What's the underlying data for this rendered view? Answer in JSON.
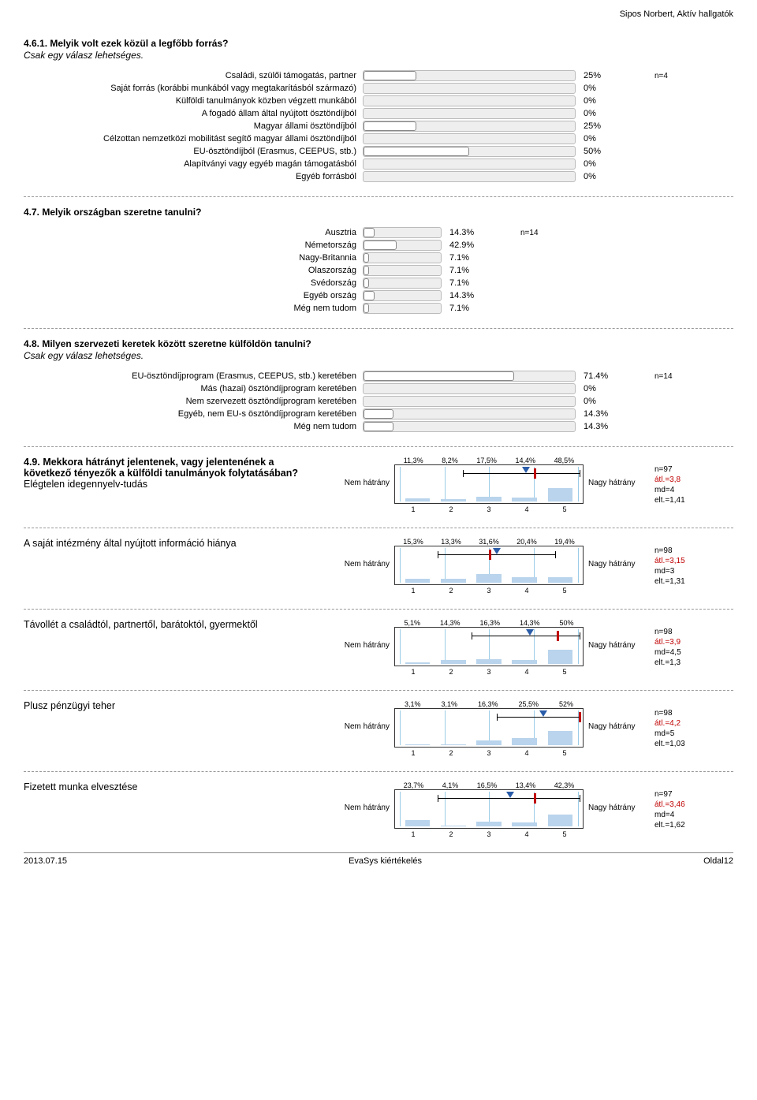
{
  "header": {
    "meta": "Sipos Norbert, Aktív hallgatók"
  },
  "q461": {
    "title": "4.6.1. Melyik volt ezek közül a legfőbb forrás?",
    "sub": "Csak egy válasz lehetséges.",
    "n": "n=4",
    "bar_track_width": 270,
    "items": [
      {
        "label": "Családi, szülői támogatás, partner",
        "val": "25%",
        "pct": 25
      },
      {
        "label": "Saját forrás (korábbi munkából vagy megtakarításból származó)",
        "val": "0%",
        "pct": 0
      },
      {
        "label": "Külföldi tanulmányok közben végzett munkából",
        "val": "0%",
        "pct": 0
      },
      {
        "label": "A fogadó állam által nyújtott ösztöndíjból",
        "val": "0%",
        "pct": 0
      },
      {
        "label": "Magyar állami ösztöndíjból",
        "val": "25%",
        "pct": 25
      },
      {
        "label": "Célzottan nemzetközi mobilitást segítő magyar állami ösztöndíjból",
        "val": "0%",
        "pct": 0
      },
      {
        "label": "EU-ösztöndíjból (Erasmus, CEEPUS, stb.)",
        "val": "50%",
        "pct": 50
      },
      {
        "label": "Alapítványi vagy egyéb magán támogatásból",
        "val": "0%",
        "pct": 0
      },
      {
        "label": "Egyéb forrásból",
        "val": "0%",
        "pct": 0
      }
    ]
  },
  "q47": {
    "title": "4.7. Melyik országban szeretne tanulni?",
    "n": "n=14",
    "bar_track_width": 100,
    "items": [
      {
        "label": "Ausztria",
        "val": "14.3%",
        "pct": 14.3
      },
      {
        "label": "Németország",
        "val": "42.9%",
        "pct": 42.9
      },
      {
        "label": "Nagy-Britannia",
        "val": "7.1%",
        "pct": 7.1
      },
      {
        "label": "Olaszország",
        "val": "7.1%",
        "pct": 7.1
      },
      {
        "label": "Svédország",
        "val": "7.1%",
        "pct": 7.1
      },
      {
        "label": "Egyéb ország",
        "val": "14.3%",
        "pct": 14.3
      },
      {
        "label": "Még nem tudom",
        "val": "7.1%",
        "pct": 7.1
      }
    ]
  },
  "q48": {
    "title": "4.8. Milyen szervezeti keretek között szeretne külföldön tanulni?",
    "sub": "Csak egy válasz lehetséges.",
    "n": "n=14",
    "bar_track_width": 270,
    "items": [
      {
        "label": "EU-ösztöndíjprogram (Erasmus, CEEPUS, stb.) keretében",
        "val": "71.4%",
        "pct": 71.4
      },
      {
        "label": "Más (hazai) ösztöndíjprogram keretében",
        "val": "0%",
        "pct": 0
      },
      {
        "label": "Nem szervezett ösztöndíjprogram keretében",
        "val": "0%",
        "pct": 0
      },
      {
        "label": "Egyéb, nem EU-s ösztöndíjprogram keretében",
        "val": "14.3%",
        "pct": 14.3
      },
      {
        "label": "Még nem tudom",
        "val": "14.3%",
        "pct": 14.3
      }
    ]
  },
  "q49": {
    "intro_bold": "4.9. Mekkora hátrányt jelentenek, vagy jelentenének a következő tényezők a külföldi tanulmányok folytatásában?",
    "left_label": "Nem hátrány",
    "right_label": "Nagy hátrány",
    "axis": [
      "1",
      "2",
      "3",
      "4",
      "5"
    ],
    "items": [
      {
        "text": "Elégtelen idegennyelv-tudás",
        "pcts": [
          "11,3%",
          "8,2%",
          "17,5%",
          "14,4%",
          "48,5%"
        ],
        "bars": [
          11.3,
          8.2,
          17.5,
          14.4,
          48.5
        ],
        "avg": 3.8,
        "md": 4,
        "err_lo": 2.4,
        "err_hi": 5.0,
        "stats": [
          "n=97",
          "átl.=3,8",
          "md=4",
          "elt.=1,41"
        ]
      },
      {
        "text": "A saját intézmény által nyújtott információ hiánya",
        "pcts": [
          "15,3%",
          "13,3%",
          "31,6%",
          "20,4%",
          "19,4%"
        ],
        "bars": [
          15.3,
          13.3,
          31.6,
          20.4,
          19.4
        ],
        "avg": 3.15,
        "md": 3,
        "err_lo": 1.85,
        "err_hi": 4.45,
        "stats": [
          "n=98",
          "átl.=3,15",
          "md=3",
          "elt.=1,31"
        ]
      },
      {
        "text": "Távollét a családtól, partnertől, barátoktól, gyermektől",
        "pcts": [
          "5,1%",
          "14,3%",
          "16,3%",
          "14,3%",
          "50%"
        ],
        "bars": [
          5.1,
          14.3,
          16.3,
          14.3,
          50
        ],
        "avg": 3.9,
        "md": 4.5,
        "err_lo": 2.6,
        "err_hi": 5.0,
        "stats": [
          "n=98",
          "átl.=3,9",
          "md=4,5",
          "elt.=1,3"
        ]
      },
      {
        "text": "Plusz pénzügyi teher",
        "pcts": [
          "3,1%",
          "3,1%",
          "16,3%",
          "25,5%",
          "52%"
        ],
        "bars": [
          3.1,
          3.1,
          16.3,
          25.5,
          52
        ],
        "avg": 4.2,
        "md": 5,
        "err_lo": 3.15,
        "err_hi": 5.0,
        "stats": [
          "n=98",
          "átl.=4,2",
          "md=5",
          "elt.=1,03"
        ]
      },
      {
        "text": "Fizetett munka elvesztése",
        "pcts": [
          "23,7%",
          "4,1%",
          "16,5%",
          "13,4%",
          "42,3%"
        ],
        "bars": [
          23.7,
          4.1,
          16.5,
          13.4,
          42.3
        ],
        "avg": 3.46,
        "md": 4,
        "err_lo": 1.85,
        "err_hi": 5.0,
        "stats": [
          "n=97",
          "átl.=3,46",
          "md=4",
          "elt.=1,62"
        ]
      }
    ]
  },
  "footer": {
    "left": "2013.07.15",
    "center": "EvaSys kiértékelés",
    "right": "Oldal12"
  }
}
